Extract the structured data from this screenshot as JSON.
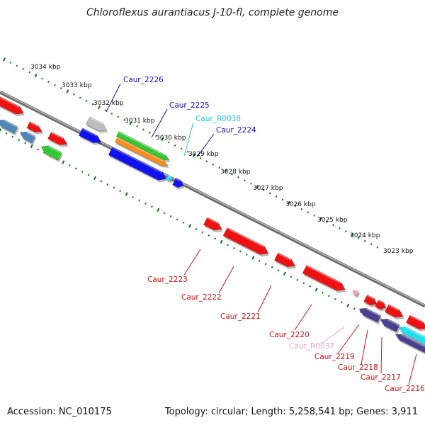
{
  "title": "Chloroflexus aurantiacus J-10-fl, complete genome",
  "accession": "Accession: NC_010175",
  "summary": "Topology: circular; Length: 5,258,541 bp; Genes: 3,911",
  "scale_labels": [
    "3034 kbp",
    "3033 kbp",
    "3032 kbp",
    "3031 kbp",
    "3030 kbp",
    "3029 kbp",
    "3028 kbp",
    "3027 kbp",
    "3026 kbp",
    "3025 kbp",
    "3024 kbp",
    "3023 kbp"
  ],
  "upper_gene_labels": [
    {
      "text": "Caur_2226",
      "color": "#1010c0"
    },
    {
      "text": "Caur_2225",
      "color": "#1010c0"
    },
    {
      "text": "Caur_R0038",
      "color": "#22c8e0"
    },
    {
      "text": "Caur_2224",
      "color": "#1010c0"
    }
  ],
  "lower_gene_labels": [
    {
      "text": "Caur_2223",
      "color": "#d01010"
    },
    {
      "text": "Caur_2222",
      "color": "#d01010"
    },
    {
      "text": "Caur_2221",
      "color": "#d01010"
    },
    {
      "text": "Caur_2220",
      "color": "#d01010"
    },
    {
      "text": "Caur_R0037",
      "color": "#f0a0c8"
    },
    {
      "text": "Caur_2219",
      "color": "#d01010"
    },
    {
      "text": "Caur_2218",
      "color": "#d01010"
    },
    {
      "text": "Caur_2217",
      "color": "#d01010"
    },
    {
      "text": "Caur_2216",
      "color": "#d01010"
    }
  ],
  "colors": {
    "backbone": "#8a8a8a",
    "tick": "#1f7a1f",
    "cds_red": "#ee1111",
    "cds_blue": "#1111ee",
    "cds_green": "#33c833",
    "cds_orange": "#ff8c1a",
    "cds_gray": "#bdbdbd",
    "cds_steel": "#4f86b8",
    "cds_purple": "#4b3f8f",
    "cds_cyan": "#22e0f0",
    "rna_pink": "#f0a0c8"
  }
}
